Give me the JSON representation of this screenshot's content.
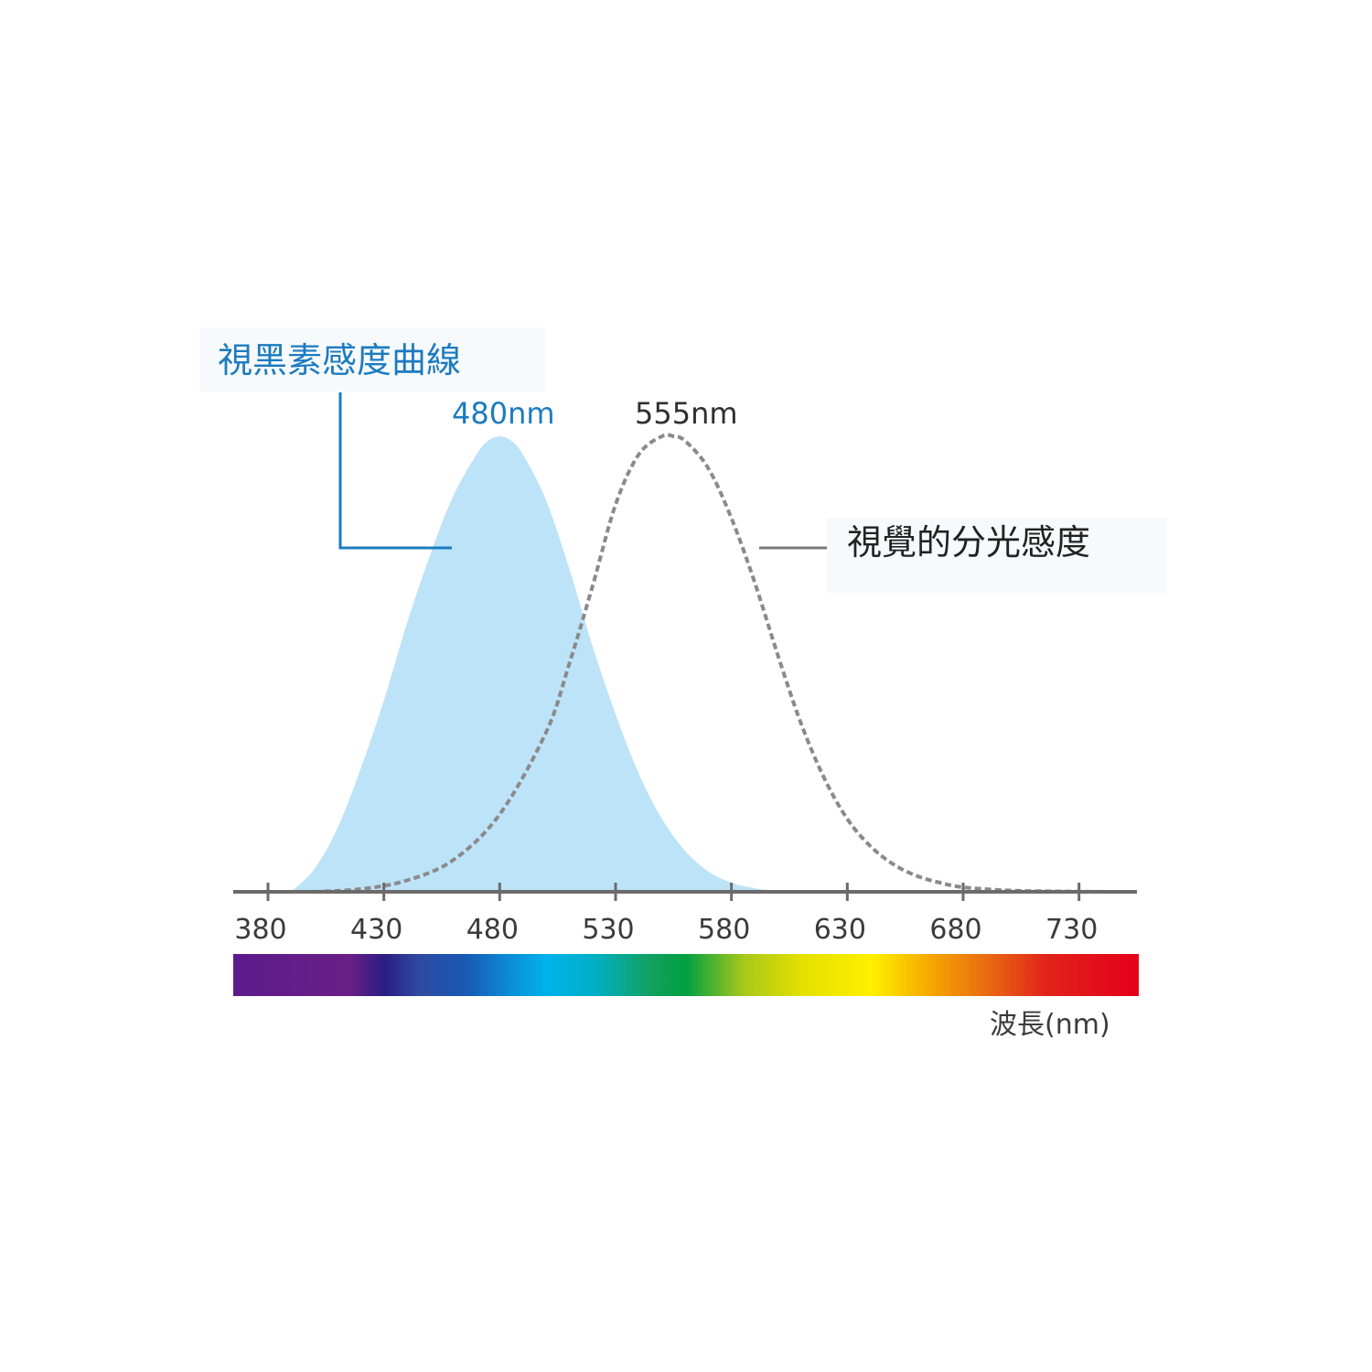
{
  "chart_data": {
    "type": "area",
    "xlabel": "波長(nm)",
    "ylabel": "",
    "xlim": [
      365,
      755
    ],
    "ylim": [
      0,
      1
    ],
    "x_ticks": [
      380,
      430,
      480,
      530,
      580,
      630,
      680,
      730
    ],
    "grid": false,
    "series": [
      {
        "name": "視黑素感度曲線",
        "style": "filled-area",
        "color": "#bde3f8",
        "peak_label": "480nm",
        "peak_label_color": "#1c7bbf",
        "x": [
          390,
          400,
          410,
          420,
          430,
          440,
          450,
          460,
          470,
          475,
          480,
          485,
          490,
          500,
          510,
          520,
          530,
          540,
          550,
          560,
          570,
          580,
          590,
          600
        ],
        "y": [
          0.0,
          0.05,
          0.14,
          0.27,
          0.42,
          0.59,
          0.74,
          0.87,
          0.96,
          0.99,
          1.0,
          0.99,
          0.96,
          0.86,
          0.71,
          0.54,
          0.39,
          0.26,
          0.16,
          0.09,
          0.045,
          0.02,
          0.008,
          0.0
        ]
      },
      {
        "name": "視覺的分光感度",
        "style": "dashed-line",
        "color": "#8a8a8a",
        "peak_label": "555nm",
        "peak_label_color": "#2f2f2f",
        "x": [
          400,
          420,
          440,
          460,
          480,
          500,
          510,
          520,
          530,
          540,
          550,
          555,
          560,
          570,
          580,
          590,
          600,
          610,
          620,
          630,
          640,
          650,
          660,
          670,
          680,
          700,
          720,
          740
        ],
        "y": [
          0.0,
          0.006,
          0.025,
          0.07,
          0.17,
          0.35,
          0.5,
          0.67,
          0.85,
          0.96,
          1.0,
          1.0,
          0.99,
          0.93,
          0.82,
          0.68,
          0.52,
          0.37,
          0.25,
          0.16,
          0.1,
          0.06,
          0.035,
          0.02,
          0.01,
          0.003,
          0.001,
          0.0
        ]
      }
    ],
    "spectrum_bar": {
      "stops": [
        {
          "nm": 365,
          "color": "#5c1a8c"
        },
        {
          "nm": 415,
          "color": "#6a1f86"
        },
        {
          "nm": 430,
          "color": "#2a1d84"
        },
        {
          "nm": 445,
          "color": "#2f4aa0"
        },
        {
          "nm": 465,
          "color": "#1859b3"
        },
        {
          "nm": 485,
          "color": "#0a8fd9"
        },
        {
          "nm": 500,
          "color": "#00b2ec"
        },
        {
          "nm": 520,
          "color": "#00b0c6"
        },
        {
          "nm": 545,
          "color": "#12a060"
        },
        {
          "nm": 560,
          "color": "#00a040"
        },
        {
          "nm": 585,
          "color": "#a8c81a"
        },
        {
          "nm": 610,
          "color": "#e4e000"
        },
        {
          "nm": 640,
          "color": "#fff000"
        },
        {
          "nm": 665,
          "color": "#f6a800"
        },
        {
          "nm": 690,
          "color": "#e96a12"
        },
        {
          "nm": 715,
          "color": "#e2231a"
        },
        {
          "nm": 755,
          "color": "#e3001a"
        }
      ]
    }
  },
  "callouts": {
    "melanopsin": {
      "text": "視黑素感度曲線",
      "color": "#1c7bbf"
    },
    "photopic": {
      "text": "視覺的分光感度",
      "color": "#222222"
    }
  },
  "colors": {
    "axis": "#6b6b6b",
    "melanopsin_leader": "#1c7bbf",
    "photopic_leader": "#7a7a7a"
  }
}
